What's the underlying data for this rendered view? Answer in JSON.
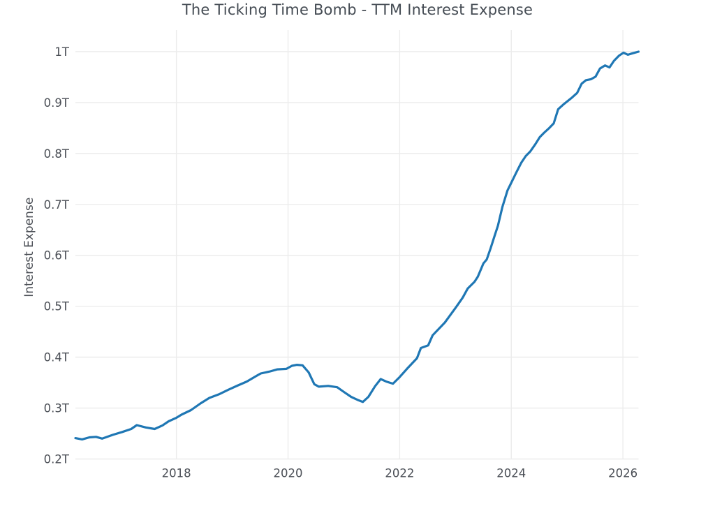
{
  "title": "The Ticking Time Bomb - TTM Interest Expense",
  "colors": {
    "background": "#ffffff",
    "line": "#1f77b4",
    "grid": "#ececec",
    "title_text": "#444b53",
    "tick_text": "#4c5057"
  },
  "chart_data": {
    "type": "line",
    "title": "The Ticking Time Bomb - TTM Interest Expense",
    "xlabel": "",
    "ylabel": "Interest Expense",
    "legend_position": "none",
    "grid": true,
    "x_range": [
      2016.19,
      2026.28
    ],
    "y_range": [
      0.2,
      1.0425
    ],
    "x_ticks": [
      {
        "v": 2018,
        "label": "2018"
      },
      {
        "v": 2020,
        "label": "2020"
      },
      {
        "v": 2022,
        "label": "2022"
      },
      {
        "v": 2024,
        "label": "2024"
      },
      {
        "v": 2026,
        "label": "2026"
      }
    ],
    "y_ticks": [
      {
        "v": 0.2,
        "label": "0.2T"
      },
      {
        "v": 0.3,
        "label": "0.3T"
      },
      {
        "v": 0.4,
        "label": "0.4T"
      },
      {
        "v": 0.5,
        "label": "0.5T"
      },
      {
        "v": 0.6,
        "label": "0.6T"
      },
      {
        "v": 0.7,
        "label": "0.7T"
      },
      {
        "v": 0.8,
        "label": "0.8T"
      },
      {
        "v": 0.9,
        "label": "0.9T"
      },
      {
        "v": 1.0,
        "label": "1T"
      }
    ],
    "series": [
      {
        "name": "TTM Interest Expense",
        "units": "trillions",
        "points": [
          [
            2016.19,
            0.241
          ],
          [
            2016.31,
            0.2385
          ],
          [
            2016.44,
            0.2425
          ],
          [
            2016.56,
            0.2435
          ],
          [
            2016.67,
            0.24
          ],
          [
            2016.86,
            0.2475
          ],
          [
            2017.03,
            0.253
          ],
          [
            2017.19,
            0.259
          ],
          [
            2017.29,
            0.2665
          ],
          [
            2017.45,
            0.262
          ],
          [
            2017.61,
            0.259
          ],
          [
            2017.75,
            0.266
          ],
          [
            2017.86,
            0.274
          ],
          [
            2018.0,
            0.281
          ],
          [
            2018.09,
            0.287
          ],
          [
            2018.26,
            0.296
          ],
          [
            2018.43,
            0.309
          ],
          [
            2018.59,
            0.32
          ],
          [
            2018.76,
            0.327
          ],
          [
            2018.93,
            0.336
          ],
          [
            2019.09,
            0.344
          ],
          [
            2019.26,
            0.352
          ],
          [
            2019.43,
            0.363
          ],
          [
            2019.51,
            0.368
          ],
          [
            2019.68,
            0.372
          ],
          [
            2019.81,
            0.376
          ],
          [
            2019.97,
            0.377
          ],
          [
            2020.07,
            0.383
          ],
          [
            2020.16,
            0.385
          ],
          [
            2020.26,
            0.384
          ],
          [
            2020.37,
            0.37
          ],
          [
            2020.47,
            0.347
          ],
          [
            2020.55,
            0.342
          ],
          [
            2020.72,
            0.3435
          ],
          [
            2020.88,
            0.341
          ],
          [
            2021.01,
            0.331
          ],
          [
            2021.13,
            0.322
          ],
          [
            2021.26,
            0.3155
          ],
          [
            2021.34,
            0.312
          ],
          [
            2021.44,
            0.322
          ],
          [
            2021.56,
            0.343
          ],
          [
            2021.66,
            0.357
          ],
          [
            2021.76,
            0.352
          ],
          [
            2021.88,
            0.348
          ],
          [
            2022.0,
            0.361
          ],
          [
            2022.13,
            0.377
          ],
          [
            2022.31,
            0.398
          ],
          [
            2022.38,
            0.418
          ],
          [
            2022.51,
            0.423
          ],
          [
            2022.59,
            0.443
          ],
          [
            2022.81,
            0.468
          ],
          [
            2023.01,
            0.498
          ],
          [
            2023.13,
            0.517
          ],
          [
            2023.22,
            0.535
          ],
          [
            2023.34,
            0.548
          ],
          [
            2023.4,
            0.558
          ],
          [
            2023.5,
            0.584
          ],
          [
            2023.56,
            0.592
          ],
          [
            2023.63,
            0.614
          ],
          [
            2023.7,
            0.638
          ],
          [
            2023.76,
            0.658
          ],
          [
            2023.84,
            0.695
          ],
          [
            2023.93,
            0.727
          ],
          [
            2024.01,
            0.745
          ],
          [
            2024.09,
            0.763
          ],
          [
            2024.18,
            0.782
          ],
          [
            2024.26,
            0.795
          ],
          [
            2024.34,
            0.804
          ],
          [
            2024.43,
            0.818
          ],
          [
            2024.51,
            0.832
          ],
          [
            2024.59,
            0.841
          ],
          [
            2024.68,
            0.85
          ],
          [
            2024.76,
            0.859
          ],
          [
            2024.84,
            0.887
          ],
          [
            2024.93,
            0.896
          ],
          [
            2025.01,
            0.903
          ],
          [
            2025.09,
            0.91
          ],
          [
            2025.18,
            0.919
          ],
          [
            2025.26,
            0.937
          ],
          [
            2025.34,
            0.944
          ],
          [
            2025.43,
            0.946
          ],
          [
            2025.51,
            0.951
          ],
          [
            2025.59,
            0.967
          ],
          [
            2025.68,
            0.973
          ],
          [
            2025.76,
            0.969
          ],
          [
            2025.84,
            0.982
          ],
          [
            2025.93,
            0.992
          ],
          [
            2026.01,
            0.998
          ],
          [
            2026.09,
            0.994
          ],
          [
            2026.18,
            0.997
          ],
          [
            2026.28,
            1.0
          ]
        ]
      }
    ]
  }
}
